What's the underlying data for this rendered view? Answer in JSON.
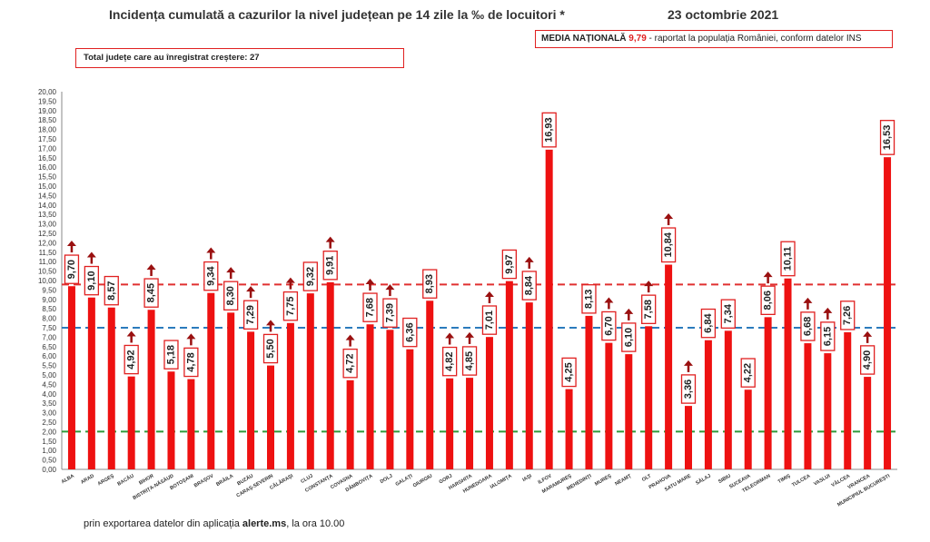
{
  "title": "Incidența cumulată a cazurilor la nivel județean pe 14 zile la ‰ de locuitori *",
  "date": "23 octombrie 2021",
  "media_box": {
    "label": "MEDIA NAȚIONALĂ",
    "value": "9,79",
    "suffix": " -  raportat la populația României, conform datelor INS"
  },
  "total_box": "Total județe care au înregistrat creștere:  27",
  "footnote": {
    "prefix": "prin exportarea datelor din aplicația ",
    "bold": "alerte.ms",
    "suffix": ", la ora 10.00"
  },
  "colors": {
    "bar": "#ee1111",
    "label_border": "#e02020",
    "arrow": "#9a1010",
    "national_line": "#e03030",
    "blue_line": "#2b7bbd",
    "green_line": "#2e9a3a"
  },
  "chart_data": {
    "type": "bar",
    "ylim": [
      0,
      20
    ],
    "ytick_step": 0.5,
    "reference_lines": [
      {
        "value": 9.79,
        "style": "dashed",
        "color": "#e03030"
      },
      {
        "value": 7.5,
        "style": "dashed",
        "color": "#2b7bbd"
      },
      {
        "value": 2.0,
        "style": "dashed",
        "color": "#2e9a3a"
      }
    ],
    "categories": [
      "ALBA",
      "ARAD",
      "ARGEȘ",
      "BACĂU",
      "BIHOR",
      "BISTRIȚA-NĂSĂUD",
      "BOTOȘANI",
      "BRAȘOV",
      "BRĂILA",
      "BUZĂU",
      "CARAȘ-SEVERIN",
      "CĂLĂRAȘI",
      "CLUJ",
      "CONSTANȚA",
      "COVASNA",
      "DÂMBOVIȚA",
      "DOLJ",
      "GALAȚI",
      "GIURGIU",
      "GORJ",
      "HARGHITA",
      "HUNEDOARA",
      "IALOMIȚA",
      "IAȘI",
      "ILFOV",
      "MARAMUREȘ",
      "MEHEDINȚI",
      "MUREȘ",
      "NEAMȚ",
      "OLT",
      "PRAHOVA",
      "SATU MARE",
      "SĂLAJ",
      "SIBIU",
      "SUCEAVA",
      "TELEORMAN",
      "TIMIȘ",
      "TULCEA",
      "VASLUI",
      "VÂLCEA",
      "VRANCEA",
      "MUNICIPIUL BUCUREȘTI"
    ],
    "values": [
      9.7,
      9.1,
      8.57,
      4.92,
      8.45,
      5.18,
      4.78,
      9.34,
      8.3,
      7.29,
      5.5,
      7.75,
      9.32,
      9.91,
      4.72,
      7.68,
      7.39,
      6.36,
      8.93,
      4.82,
      4.85,
      7.01,
      9.97,
      8.84,
      16.93,
      4.25,
      8.13,
      6.7,
      6.1,
      7.58,
      10.84,
      3.36,
      6.84,
      7.34,
      4.22,
      8.06,
      10.11,
      6.68,
      6.15,
      7.26,
      4.9,
      16.53
    ],
    "labels": [
      "9,70",
      "9,10",
      "8,57",
      "4,92",
      "8,45",
      "5,18",
      "4,78",
      "9,34",
      "8,30",
      "7,29",
      "5,50",
      "7,75",
      "9,32",
      "9,91",
      "4,72",
      "7,68",
      "7,39",
      "6,36",
      "8,93",
      "4,82",
      "4,85",
      "7,01",
      "9,97",
      "8,84",
      "16,93",
      "4,25",
      "8,13",
      "6,70",
      "6,10",
      "7,58",
      "10,84",
      "3,36",
      "6,84",
      "7,34",
      "4,22",
      "8,06",
      "10,11",
      "6,68",
      "6,15",
      "7,26",
      "4,90",
      "16,53"
    ],
    "increase": [
      true,
      true,
      false,
      true,
      true,
      false,
      true,
      true,
      true,
      true,
      true,
      true,
      false,
      true,
      true,
      true,
      true,
      false,
      false,
      true,
      true,
      true,
      false,
      true,
      false,
      false,
      false,
      true,
      true,
      true,
      true,
      true,
      false,
      false,
      false,
      true,
      false,
      true,
      true,
      false,
      true,
      false
    ]
  }
}
